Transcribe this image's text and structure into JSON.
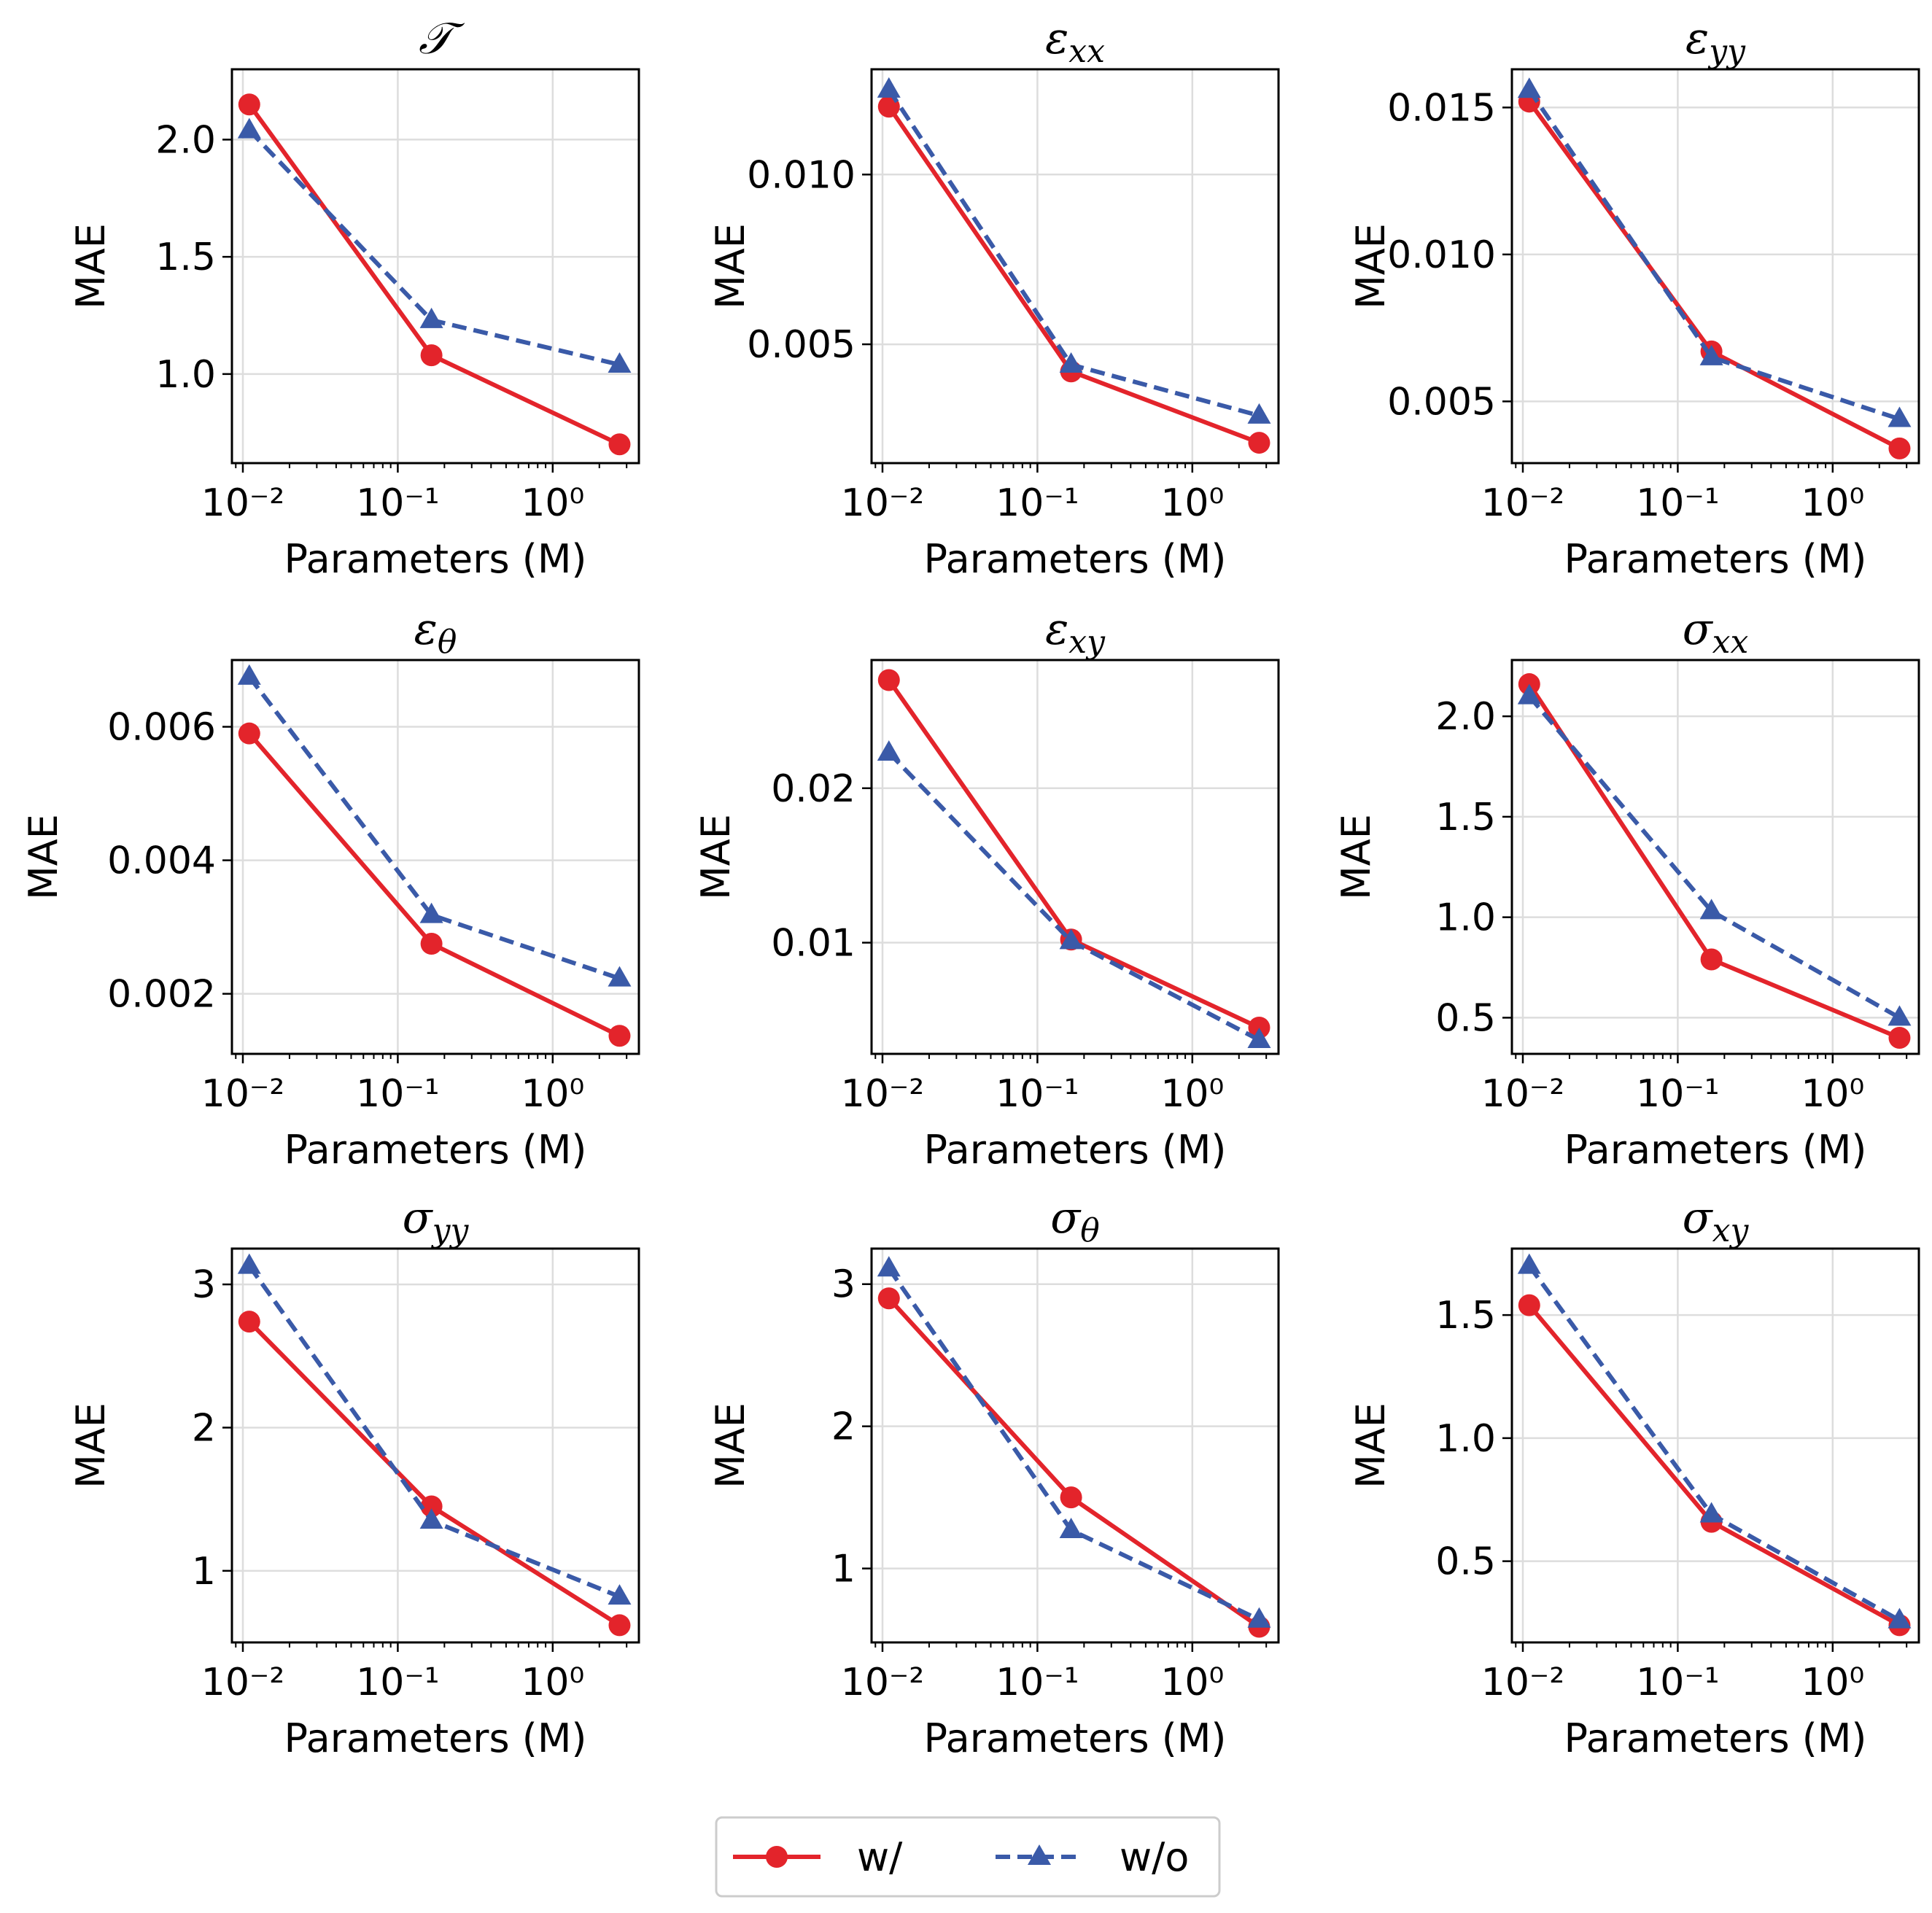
{
  "colors": {
    "with": "#e3242b",
    "without": "#3a5aa8",
    "grid": "#dddddd",
    "axis": "#000000"
  },
  "legend": {
    "placement": "bottom-center",
    "entries": [
      {
        "key": "with",
        "label": "w/",
        "marker": "circle",
        "dash": "solid"
      },
      {
        "key": "without",
        "label": "w/o",
        "marker": "triangle",
        "dash": "dashed"
      }
    ]
  },
  "chart_data": [
    {
      "type": "line",
      "title_main": "𝒯",
      "title_sub": "",
      "xlabel": "Parameters (M)",
      "ylabel": "MAE",
      "xscale": "log",
      "xlim": [
        0.0085,
        3.6
      ],
      "ylim": [
        0.62,
        2.3
      ],
      "xticks": [
        0.01,
        0.1,
        1
      ],
      "xticklabels": [
        "10⁻²",
        "10⁻¹",
        "10⁰"
      ],
      "yticks": [
        1.0,
        1.5,
        2.0
      ],
      "yticklabels": [
        "1.0",
        "1.5",
        "2.0"
      ],
      "grid": true,
      "x": [
        0.011,
        0.165,
        2.7
      ],
      "series": [
        {
          "name": "w/",
          "values": [
            2.15,
            1.08,
            0.7
          ]
        },
        {
          "name": "w/o",
          "values": [
            2.04,
            1.23,
            1.04
          ]
        }
      ]
    },
    {
      "type": "line",
      "title_main": "ε",
      "title_sub": "xx",
      "xlabel": "Parameters (M)",
      "ylabel": "MAE",
      "xscale": "log",
      "xlim": [
        0.0085,
        3.6
      ],
      "ylim": [
        0.0015,
        0.0131
      ],
      "xticks": [
        0.01,
        0.1,
        1
      ],
      "xticklabels": [
        "10⁻²",
        "10⁻¹",
        "10⁰"
      ],
      "yticks": [
        0.005,
        0.01
      ],
      "yticklabels": [
        "0.005",
        "0.010"
      ],
      "grid": true,
      "x": [
        0.011,
        0.165,
        2.7
      ],
      "series": [
        {
          "name": "w/",
          "values": [
            0.012,
            0.0042,
            0.0021
          ]
        },
        {
          "name": "w/o",
          "values": [
            0.0125,
            0.0044,
            0.0029
          ]
        }
      ]
    },
    {
      "type": "line",
      "title_main": "ε",
      "title_sub": "yy",
      "xlabel": "Parameters (M)",
      "ylabel": "MAE",
      "xscale": "log",
      "xlim": [
        0.0085,
        3.6
      ],
      "ylim": [
        0.0029,
        0.0163
      ],
      "xticks": [
        0.01,
        0.1,
        1
      ],
      "xticklabels": [
        "10⁻²",
        "10⁻¹",
        "10⁰"
      ],
      "yticks": [
        0.005,
        0.01,
        0.015
      ],
      "yticklabels": [
        "0.005",
        "0.010",
        "0.015"
      ],
      "grid": true,
      "x": [
        0.011,
        0.165,
        2.7
      ],
      "series": [
        {
          "name": "w/",
          "values": [
            0.0152,
            0.0067,
            0.0034
          ]
        },
        {
          "name": "w/o",
          "values": [
            0.0156,
            0.0065,
            0.0044
          ]
        }
      ]
    },
    {
      "type": "line",
      "title_main": "ε",
      "title_sub": "θ",
      "xlabel": "Parameters (M)",
      "ylabel": "MAE",
      "xscale": "log",
      "xlim": [
        0.0085,
        3.6
      ],
      "ylim": [
        0.0011,
        0.007
      ],
      "xticks": [
        0.01,
        0.1,
        1
      ],
      "xticklabels": [
        "10⁻²",
        "10⁻¹",
        "10⁰"
      ],
      "yticks": [
        0.002,
        0.004,
        0.006
      ],
      "yticklabels": [
        "0.002",
        "0.004",
        "0.006"
      ],
      "grid": true,
      "x": [
        0.011,
        0.165,
        2.7
      ],
      "series": [
        {
          "name": "w/",
          "values": [
            0.0059,
            0.00275,
            0.00137
          ]
        },
        {
          "name": "w/o",
          "values": [
            0.00675,
            0.00318,
            0.00223
          ]
        }
      ]
    },
    {
      "type": "line",
      "title_main": "ε",
      "title_sub": "xy",
      "xlabel": "Parameters (M)",
      "ylabel": "MAE",
      "xscale": "log",
      "xlim": [
        0.0085,
        3.6
      ],
      "ylim": [
        0.0028,
        0.0283
      ],
      "xticks": [
        0.01,
        0.1,
        1
      ],
      "xticklabels": [
        "10⁻²",
        "10⁻¹",
        "10⁰"
      ],
      "yticks": [
        0.01,
        0.02
      ],
      "yticklabels": [
        "0.01",
        "0.02"
      ],
      "grid": true,
      "x": [
        0.011,
        0.165,
        2.7
      ],
      "series": [
        {
          "name": "w/",
          "values": [
            0.027,
            0.0102,
            0.0045
          ]
        },
        {
          "name": "w/o",
          "values": [
            0.0223,
            0.0101,
            0.0037
          ]
        }
      ]
    },
    {
      "type": "line",
      "title_main": "σ",
      "title_sub": "xx",
      "xlabel": "Parameters (M)",
      "ylabel": "MAE",
      "xscale": "log",
      "xlim": [
        0.0085,
        3.6
      ],
      "ylim": [
        0.32,
        2.28
      ],
      "xticks": [
        0.01,
        0.1,
        1
      ],
      "xticklabels": [
        "10⁻²",
        "10⁻¹",
        "10⁰"
      ],
      "yticks": [
        0.5,
        1.0,
        1.5,
        2.0
      ],
      "yticklabels": [
        "0.5",
        "1.0",
        "1.5",
        "2.0"
      ],
      "grid": true,
      "x": [
        0.011,
        0.165,
        2.7
      ],
      "series": [
        {
          "name": "w/",
          "values": [
            2.16,
            0.79,
            0.4
          ]
        },
        {
          "name": "w/o",
          "values": [
            2.1,
            1.03,
            0.5
          ]
        }
      ]
    },
    {
      "type": "line",
      "title_main": "σ",
      "title_sub": "yy",
      "xlabel": "Parameters (M)",
      "ylabel": "MAE",
      "xscale": "log",
      "xlim": [
        0.0085,
        3.6
      ],
      "ylim": [
        0.5,
        3.25
      ],
      "xticks": [
        0.01,
        0.1,
        1
      ],
      "xticklabels": [
        "10⁻²",
        "10⁻¹",
        "10⁰"
      ],
      "yticks": [
        1,
        2,
        3
      ],
      "yticklabels": [
        "1",
        "2",
        "3"
      ],
      "grid": true,
      "x": [
        0.011,
        0.165,
        2.7
      ],
      "series": [
        {
          "name": "w/",
          "values": [
            2.74,
            1.45,
            0.62
          ]
        },
        {
          "name": "w/o",
          "values": [
            3.13,
            1.35,
            0.82
          ]
        }
      ]
    },
    {
      "type": "line",
      "title_main": "σ",
      "title_sub": "θ",
      "xlabel": "Parameters (M)",
      "ylabel": "MAE",
      "xscale": "log",
      "xlim": [
        0.0085,
        3.6
      ],
      "ylim": [
        0.48,
        3.25
      ],
      "xticks": [
        0.01,
        0.1,
        1
      ],
      "xticklabels": [
        "10⁻²",
        "10⁻¹",
        "10⁰"
      ],
      "yticks": [
        1,
        2,
        3
      ],
      "yticklabels": [
        "1",
        "2",
        "3"
      ],
      "grid": true,
      "x": [
        0.011,
        0.165,
        2.7
      ],
      "series": [
        {
          "name": "w/",
          "values": [
            2.9,
            1.5,
            0.59
          ]
        },
        {
          "name": "w/o",
          "values": [
            3.11,
            1.27,
            0.64
          ]
        }
      ]
    },
    {
      "type": "line",
      "title_main": "σ",
      "title_sub": "xy",
      "xlabel": "Parameters (M)",
      "ylabel": "MAE",
      "xscale": "log",
      "xlim": [
        0.0085,
        3.6
      ],
      "ylim": [
        0.17,
        1.77
      ],
      "xticks": [
        0.01,
        0.1,
        1
      ],
      "xticklabels": [
        "10⁻²",
        "10⁻¹",
        "10⁰"
      ],
      "yticks": [
        0.5,
        1.0,
        1.5
      ],
      "yticklabels": [
        "0.5",
        "1.0",
        "1.5"
      ],
      "grid": true,
      "x": [
        0.011,
        0.165,
        2.7
      ],
      "series": [
        {
          "name": "w/",
          "values": [
            1.54,
            0.66,
            0.24
          ]
        },
        {
          "name": "w/o",
          "values": [
            1.7,
            0.69,
            0.26
          ]
        }
      ]
    }
  ]
}
